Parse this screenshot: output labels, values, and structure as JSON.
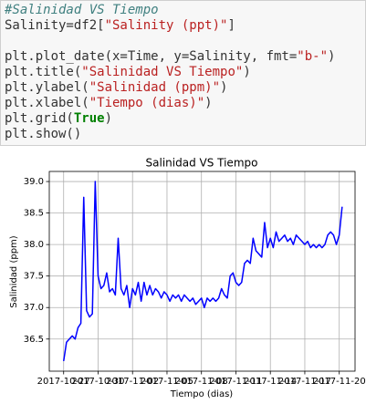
{
  "code": [
    [
      {
        "text": "#Salinidad VS Tiempo",
        "kind": "comment"
      }
    ],
    [
      {
        "text": "Salinity=df2["
      },
      {
        "text": "\"Salinity (ppt)\"",
        "kind": "string"
      },
      {
        "text": "]"
      }
    ],
    [],
    [
      {
        "text": "plt.plot_date(x=Time, y=Salinity, fmt="
      },
      {
        "text": "\"b-\"",
        "kind": "string"
      },
      {
        "text": ")"
      }
    ],
    [
      {
        "text": "plt.title("
      },
      {
        "text": "\"Salinidad VS Tiempo\"",
        "kind": "string"
      },
      {
        "text": ")"
      }
    ],
    [
      {
        "text": "plt.ylabel("
      },
      {
        "text": "\"Salinidad (ppm)\"",
        "kind": "string"
      },
      {
        "text": ")"
      }
    ],
    [
      {
        "text": "plt.xlabel("
      },
      {
        "text": "\"Tiempo (dias)\"",
        "kind": "string"
      },
      {
        "text": ")"
      }
    ],
    [
      {
        "text": "plt.grid("
      },
      {
        "text": "True",
        "kind": "keyword"
      },
      {
        "text": ")"
      }
    ],
    [
      {
        "text": "plt.show()"
      }
    ]
  ],
  "chart_data": {
    "type": "line",
    "title": "Salinidad VS Tiempo",
    "x_label": "Tiempo (dias)",
    "y_label": "Salinidad (ppm)",
    "x": [
      "2017-10-27 00:00",
      "2017-10-27 06:00",
      "2017-10-27 12:00",
      "2017-10-27 18:00",
      "2017-10-28 00:00",
      "2017-10-28 06:00",
      "2017-10-28 12:00",
      "2017-10-28 18:00",
      "2017-10-29 00:00",
      "2017-10-29 06:00",
      "2017-10-29 12:00",
      "2017-10-29 18:00",
      "2017-10-30 00:00",
      "2017-10-30 06:00",
      "2017-10-30 12:00",
      "2017-10-30 18:00",
      "2017-10-31 00:00",
      "2017-10-31 06:00",
      "2017-10-31 12:00",
      "2017-10-31 18:00",
      "2017-11-01 00:00",
      "2017-11-01 06:00",
      "2017-11-01 12:00",
      "2017-11-01 18:00",
      "2017-11-02 00:00",
      "2017-11-02 06:00",
      "2017-11-02 12:00",
      "2017-11-02 18:00",
      "2017-11-03 00:00",
      "2017-11-03 06:00",
      "2017-11-03 12:00",
      "2017-11-03 18:00",
      "2017-11-04 00:00",
      "2017-11-04 06:00",
      "2017-11-04 12:00",
      "2017-11-04 18:00",
      "2017-11-05 00:00",
      "2017-11-05 06:00",
      "2017-11-05 12:00",
      "2017-11-05 18:00",
      "2017-11-06 00:00",
      "2017-11-06 06:00",
      "2017-11-06 12:00",
      "2017-11-06 18:00",
      "2017-11-07 00:00",
      "2017-11-07 06:00",
      "2017-11-07 12:00",
      "2017-11-07 18:00",
      "2017-11-08 00:00",
      "2017-11-08 06:00",
      "2017-11-08 12:00",
      "2017-11-08 18:00",
      "2017-11-09 00:00",
      "2017-11-09 06:00",
      "2017-11-09 12:00",
      "2017-11-09 18:00",
      "2017-11-10 00:00",
      "2017-11-10 06:00",
      "2017-11-10 12:00",
      "2017-11-10 18:00",
      "2017-11-11 00:00",
      "2017-11-11 06:00",
      "2017-11-11 12:00",
      "2017-11-11 18:00",
      "2017-11-12 00:00",
      "2017-11-12 06:00",
      "2017-11-12 12:00",
      "2017-11-12 18:00",
      "2017-11-13 00:00",
      "2017-11-13 06:00",
      "2017-11-13 12:00",
      "2017-11-13 18:00",
      "2017-11-14 00:00",
      "2017-11-14 06:00",
      "2017-11-14 12:00",
      "2017-11-14 18:00",
      "2017-11-15 00:00",
      "2017-11-15 06:00",
      "2017-11-15 12:00",
      "2017-11-15 18:00",
      "2017-11-16 00:00",
      "2017-11-16 06:00",
      "2017-11-16 12:00",
      "2017-11-16 18:00",
      "2017-11-17 00:00",
      "2017-11-17 06:00",
      "2017-11-17 12:00",
      "2017-11-17 18:00",
      "2017-11-18 00:00",
      "2017-11-18 06:00",
      "2017-11-18 12:00",
      "2017-11-18 18:00",
      "2017-11-19 00:00",
      "2017-11-19 06:00",
      "2017-11-19 12:00",
      "2017-11-19 18:00",
      "2017-11-20 00:00",
      "2017-11-20 06:00"
    ],
    "series": [
      {
        "name": "Salinity",
        "color": "#0000ff",
        "values": [
          36.15,
          36.45,
          36.5,
          36.55,
          36.5,
          36.68,
          36.75,
          38.75,
          36.95,
          36.85,
          36.9,
          39.0,
          37.5,
          37.3,
          37.35,
          37.55,
          37.25,
          37.3,
          37.2,
          38.1,
          37.3,
          37.2,
          37.35,
          37.0,
          37.3,
          37.2,
          37.4,
          37.1,
          37.4,
          37.2,
          37.35,
          37.2,
          37.3,
          37.25,
          37.15,
          37.25,
          37.2,
          37.1,
          37.2,
          37.15,
          37.2,
          37.1,
          37.2,
          37.15,
          37.1,
          37.15,
          37.05,
          37.1,
          37.15,
          37.0,
          37.15,
          37.1,
          37.15,
          37.1,
          37.15,
          37.3,
          37.2,
          37.15,
          37.5,
          37.55,
          37.4,
          37.35,
          37.4,
          37.7,
          37.75,
          37.7,
          38.1,
          37.9,
          37.85,
          37.8,
          38.35,
          37.95,
          38.1,
          37.95,
          38.2,
          38.05,
          38.1,
          38.15,
          38.05,
          38.1,
          38.0,
          38.15,
          38.1,
          38.05,
          38.0,
          38.05,
          37.95,
          38.0,
          37.95,
          38.0,
          37.95,
          38.0,
          38.15,
          38.2,
          38.15,
          38.0,
          38.15,
          38.6
        ]
      }
    ],
    "xlim": [
      "2017-10-25 18:00",
      "2017-11-21 09:00"
    ],
    "xticks": [
      "2017-10-27",
      "2017-10-30",
      "2017-11-02",
      "2017-11-05",
      "2017-11-08",
      "2017-11-11",
      "2017-11-14",
      "2017-11-17",
      "2017-11-20"
    ],
    "ylim": [
      35.99,
      39.16
    ],
    "yticks": [
      {
        "value": 36.5,
        "label": "36.5"
      },
      {
        "value": 37,
        "label": "37.0"
      },
      {
        "value": 37.5,
        "label": "37.5"
      },
      {
        "value": 38,
        "label": "38.0"
      },
      {
        "value": 38.5,
        "label": "38.5"
      },
      {
        "value": 39,
        "label": "39.0"
      }
    ],
    "grid": true
  }
}
